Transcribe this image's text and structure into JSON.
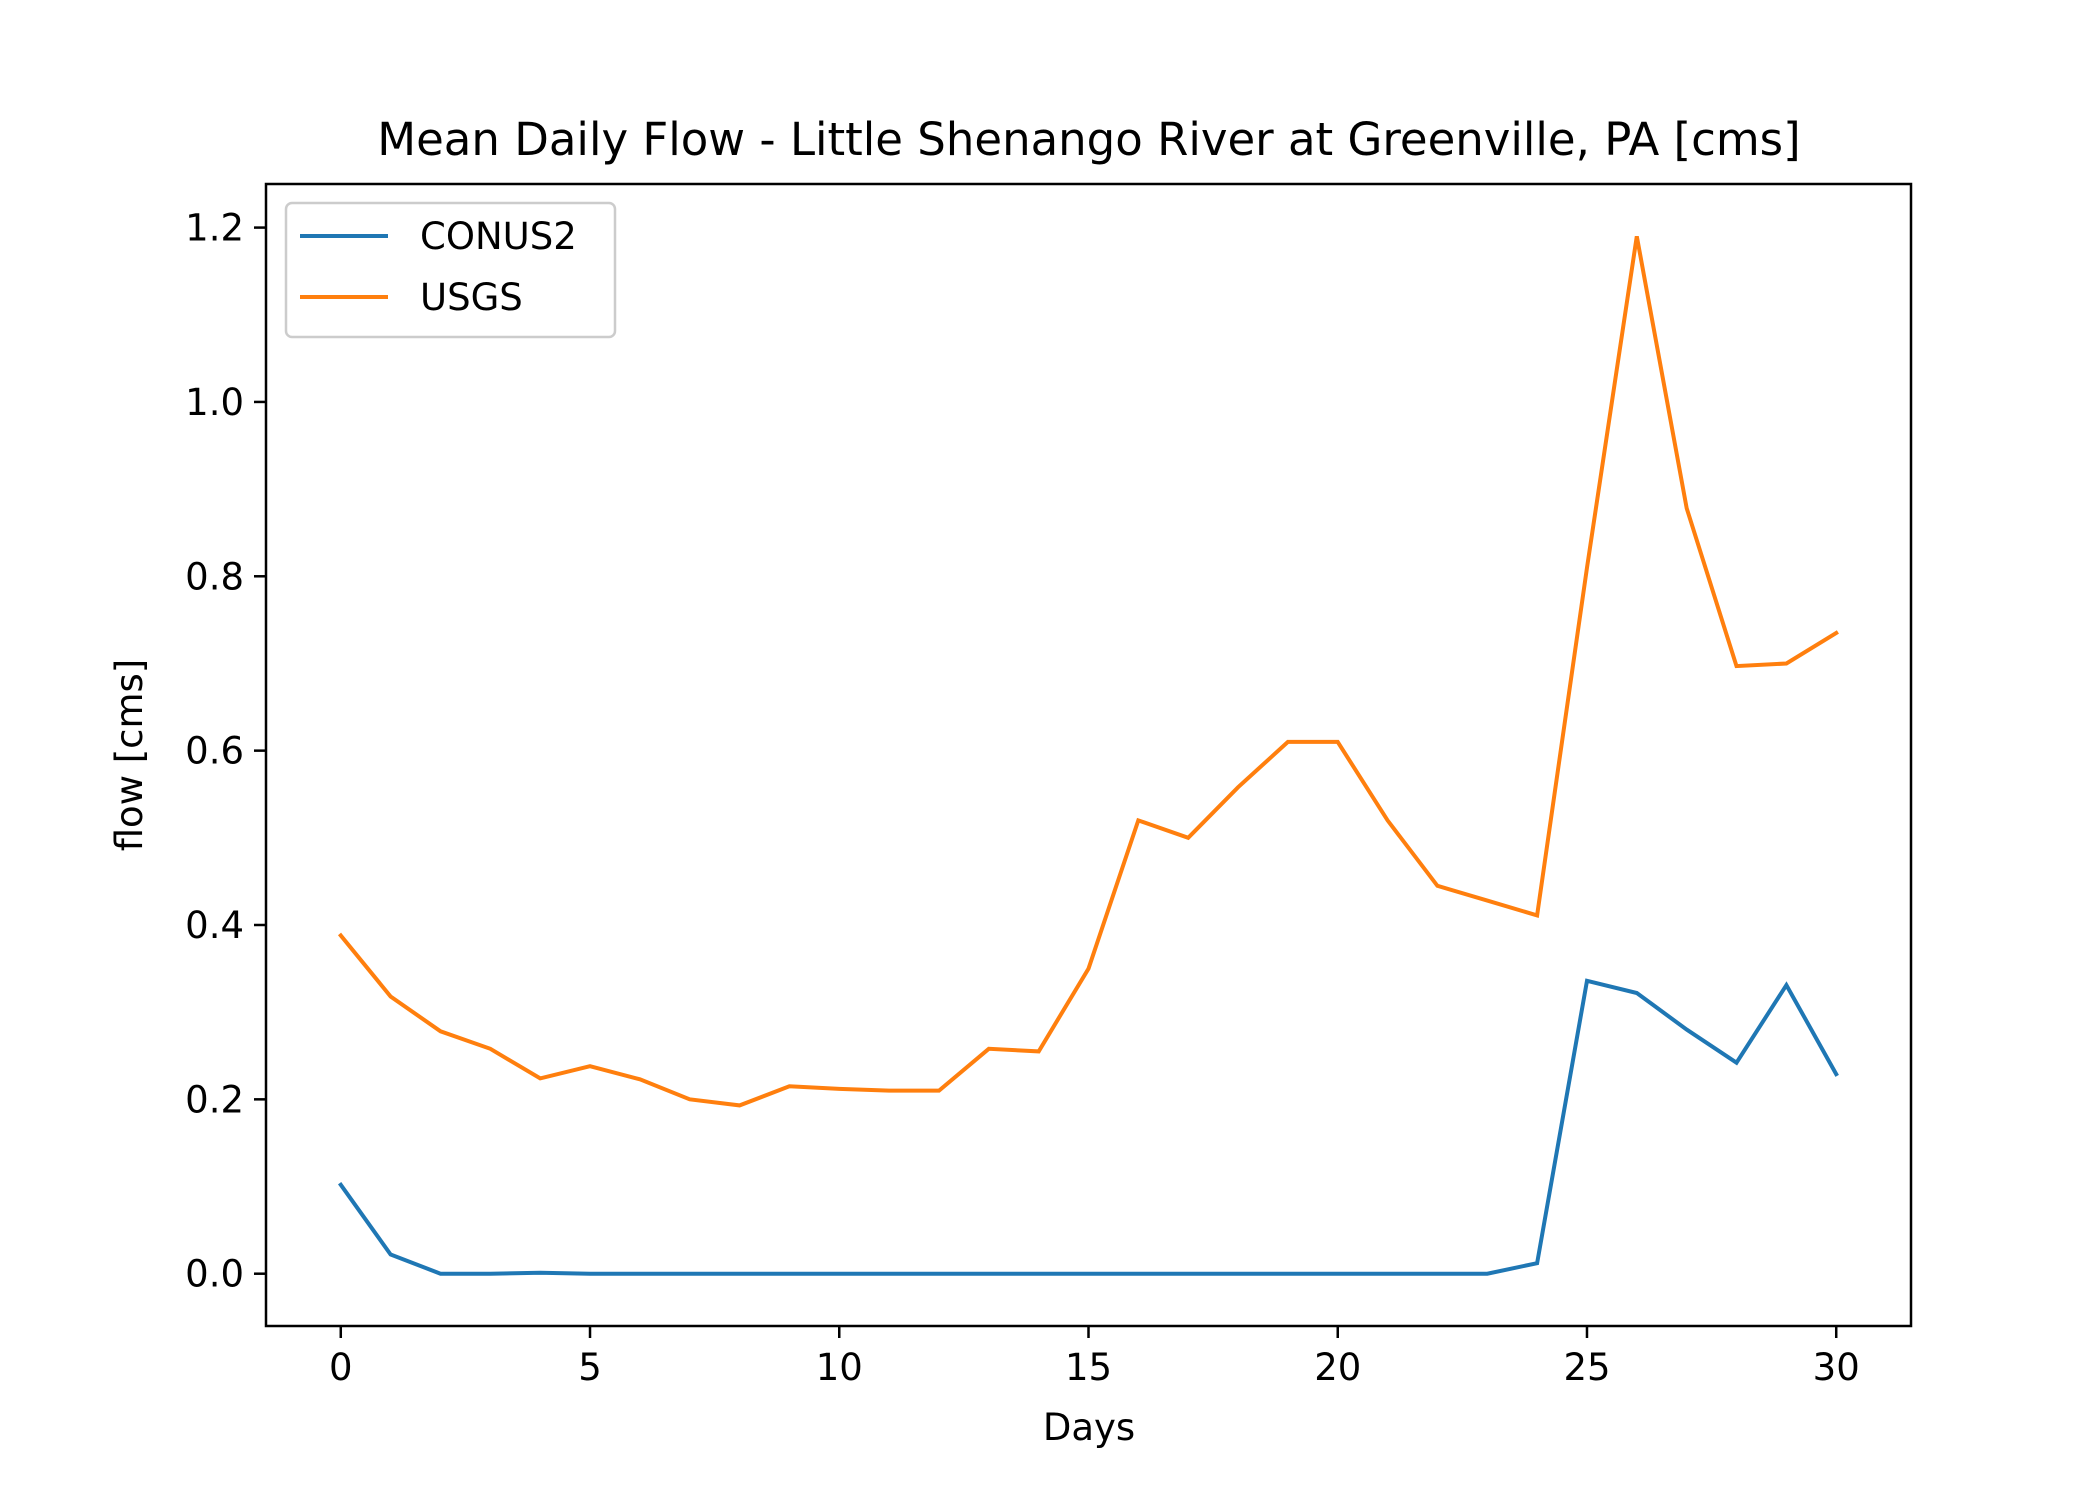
{
  "chart_data": {
    "type": "line",
    "title": "Mean Daily Flow - Little Shenango River at Greenville, PA [cms]",
    "xlabel": "Days",
    "ylabel": "flow [cms]",
    "xlim": [
      -1.5,
      31.5
    ],
    "ylim": [
      -0.06,
      1.25
    ],
    "xticks": [
      0,
      5,
      10,
      15,
      20,
      25,
      30
    ],
    "xtick_labels": [
      "0",
      "5",
      "10",
      "15",
      "20",
      "25",
      "30"
    ],
    "yticks": [
      0.0,
      0.2,
      0.4,
      0.6,
      0.8,
      1.0,
      1.2
    ],
    "ytick_labels": [
      "0.0",
      "0.2",
      "0.4",
      "0.6",
      "0.8",
      "1.0",
      "1.2"
    ],
    "grid": false,
    "legend_position": "top-left",
    "x": [
      0,
      1,
      2,
      3,
      4,
      5,
      6,
      7,
      8,
      9,
      10,
      11,
      12,
      13,
      14,
      15,
      16,
      17,
      18,
      19,
      20,
      21,
      22,
      23,
      24,
      25,
      26,
      27,
      28,
      29,
      30
    ],
    "series": [
      {
        "name": "CONUS2",
        "color": "#1f77b4",
        "values": [
          0.102,
          0.022,
          0.0,
          0.0,
          0.001,
          0.0,
          0.0,
          0.0,
          0.0,
          0.0,
          0.0,
          0.0,
          0.0,
          0.0,
          0.0,
          0.0,
          0.0,
          0.0,
          0.0,
          0.0,
          0.0,
          0.0,
          0.0,
          0.0,
          0.012,
          0.336,
          0.322,
          0.28,
          0.242,
          0.331,
          0.229
        ]
      },
      {
        "name": "USGS",
        "color": "#ff7f0e",
        "values": [
          0.388,
          0.318,
          0.278,
          0.258,
          0.224,
          0.238,
          0.223,
          0.2,
          0.193,
          0.215,
          0.212,
          0.21,
          0.21,
          0.258,
          0.255,
          0.35,
          0.52,
          0.5,
          0.558,
          0.61,
          0.61,
          0.52,
          0.445,
          0.428,
          0.411,
          0.81,
          1.19,
          0.878,
          0.697,
          0.7,
          0.735
        ]
      }
    ]
  }
}
